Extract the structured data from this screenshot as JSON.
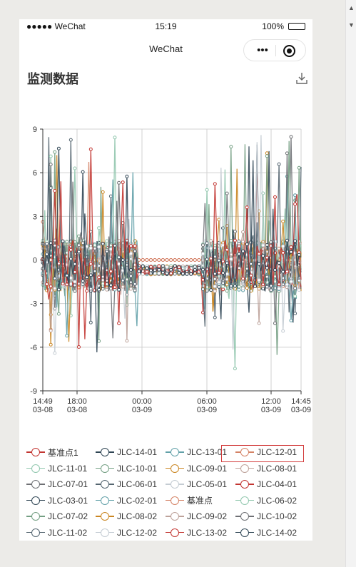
{
  "status_bar": {
    "left": "●●●●● WeChat",
    "time": "15:19",
    "battery_percent": "100%",
    "battery_level": 1.0
  },
  "nav": {
    "title": "WeChat",
    "more_label": "•••"
  },
  "page": {
    "title": "监测数据"
  },
  "chart_data": {
    "type": "line",
    "y_axis": {
      "min": -9,
      "max": 9,
      "ticks": [
        "9",
        "6",
        "3",
        "0",
        "-3",
        "-6",
        "-9"
      ]
    },
    "x_axis": {
      "ticks": [
        {
          "time": "14:49",
          "date": "03-08"
        },
        {
          "time": "18:00",
          "date": "03-08"
        },
        {
          "time": "00:00",
          "date": "03-09"
        },
        {
          "time": "06:00",
          "date": "03-09"
        },
        {
          "time": "12:00",
          "date": "03-09"
        },
        {
          "time": "14:45",
          "date": "03-09"
        }
      ]
    },
    "grid": true,
    "legend_position": "bottom",
    "series": [
      {
        "name": "基准点1",
        "color": "#c23531"
      },
      {
        "name": "JLC-14-01",
        "color": "#2f4554"
      },
      {
        "name": "JLC-13-01",
        "color": "#61a0a8"
      },
      {
        "name": "JLC-12-01",
        "color": "#d48265"
      },
      {
        "name": "JLC-11-01",
        "color": "#91c7ae"
      },
      {
        "name": "JLC-10-01",
        "color": "#749f83"
      },
      {
        "name": "JLC-09-01",
        "color": "#ca8622"
      },
      {
        "name": "JLC-08-01",
        "color": "#bda29a"
      },
      {
        "name": "JLC-07-01",
        "color": "#6e7074"
      },
      {
        "name": "JLC-06-01",
        "color": "#546570"
      },
      {
        "name": "JLC-05-01",
        "color": "#c4ccd3"
      },
      {
        "name": "JLC-04-01",
        "color": "#c23531"
      },
      {
        "name": "JLC-03-01",
        "color": "#2f4554"
      },
      {
        "name": "JLC-02-01",
        "color": "#61a0a8"
      },
      {
        "name": "基准点",
        "color": "#d48265"
      },
      {
        "name": "JLC-06-02",
        "color": "#91c7ae"
      },
      {
        "name": "JLC-07-02",
        "color": "#749f83"
      },
      {
        "name": "JLC-08-02",
        "color": "#ca8622"
      },
      {
        "name": "JLC-09-02",
        "color": "#bda29a"
      },
      {
        "name": "JLC-10-02",
        "color": "#6e7074"
      },
      {
        "name": "JLC-11-02",
        "color": "#546570"
      },
      {
        "name": "JLC-12-02",
        "color": "#c4ccd3"
      },
      {
        "name": "JLC-13-02",
        "color": "#c23531"
      },
      {
        "name": "JLC-14-02",
        "color": "#2f4554"
      }
    ],
    "selected_legend": "JLC-12-01"
  }
}
